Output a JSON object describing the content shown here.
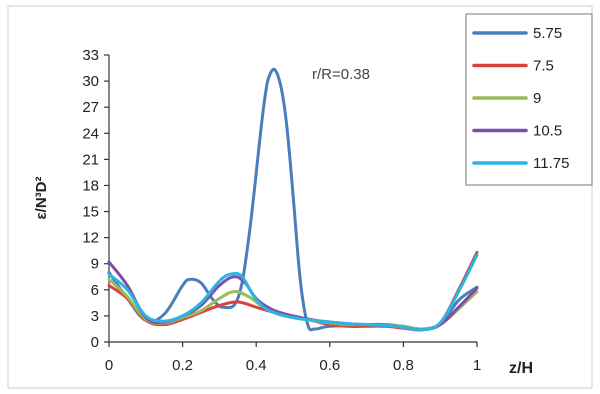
{
  "chart_data": {
    "type": "line",
    "annotation": "r/R=0.38",
    "xlabel": "z/H",
    "ylabel": "ε/N³D²",
    "xlim": [
      0,
      1
    ],
    "ylim": [
      0,
      33
    ],
    "xticks": [
      0,
      0.2,
      0.4,
      0.6,
      0.8,
      1
    ],
    "xtick_labels": [
      "0",
      "0.2",
      "0.4",
      "0.6",
      "0.8",
      "1"
    ],
    "yticks": [
      0,
      3,
      6,
      9,
      12,
      15,
      18,
      21,
      24,
      27,
      30,
      33
    ],
    "ytick_labels": [
      "0",
      "3",
      "6",
      "9",
      "12",
      "15",
      "18",
      "21",
      "24",
      "27",
      "30",
      "33"
    ],
    "grid": false,
    "legend_position": "top-right",
    "series": [
      {
        "name": "5.75",
        "color": "#4a7ebb",
        "x": [
          0,
          0.05,
          0.1,
          0.15,
          0.2,
          0.22,
          0.25,
          0.28,
          0.31,
          0.35,
          0.38,
          0.42,
          0.44,
          0.46,
          0.48,
          0.5,
          0.52,
          0.54,
          0.56,
          0.6,
          0.7,
          0.75,
          0.8,
          0.85,
          0.9,
          0.95,
          1
        ],
        "y": [
          8,
          5,
          2.5,
          3.2,
          6.5,
          7.2,
          6.8,
          5,
          4,
          5,
          12,
          27,
          31,
          30.5,
          26,
          17,
          7,
          2,
          1.5,
          1.8,
          2.0,
          2.0,
          1.8,
          1.5,
          2.0,
          4.8,
          6.3
        ]
      },
      {
        "name": "7.5",
        "color": "#d9423e",
        "x": [
          0,
          0.05,
          0.1,
          0.15,
          0.2,
          0.25,
          0.3,
          0.35,
          0.4,
          0.45,
          0.5,
          0.55,
          0.6,
          0.65,
          0.7,
          0.75,
          0.8,
          0.85,
          0.9,
          0.95,
          1
        ],
        "y": [
          6.5,
          5,
          2.5,
          2,
          2.6,
          3.4,
          4.2,
          4.6,
          4.0,
          3.4,
          3.0,
          2.5,
          2.0,
          1.8,
          1.8,
          1.8,
          1.6,
          1.4,
          2.2,
          6.0,
          10.3
        ]
      },
      {
        "name": "9",
        "color": "#9bbb59",
        "x": [
          0,
          0.05,
          0.1,
          0.15,
          0.2,
          0.25,
          0.3,
          0.34,
          0.38,
          0.42,
          0.46,
          0.5,
          0.55,
          0.6,
          0.65,
          0.7,
          0.75,
          0.8,
          0.85,
          0.9,
          0.95,
          1
        ],
        "y": [
          7.2,
          5.2,
          2.6,
          2.2,
          2.8,
          3.6,
          5.0,
          5.8,
          5.2,
          4.0,
          3.4,
          3.0,
          2.5,
          2.2,
          2.0,
          2.0,
          1.9,
          1.8,
          1.5,
          2.0,
          3.8,
          5.8
        ]
      },
      {
        "name": "10.5",
        "color": "#7f4fa8",
        "x": [
          0,
          0.05,
          0.1,
          0.15,
          0.2,
          0.25,
          0.3,
          0.34,
          0.37,
          0.4,
          0.44,
          0.48,
          0.52,
          0.56,
          0.6,
          0.65,
          0.7,
          0.75,
          0.8,
          0.85,
          0.9,
          0.95,
          1
        ],
        "y": [
          9.2,
          6.5,
          2.8,
          2.3,
          3.0,
          4.2,
          6.5,
          7.5,
          6.8,
          5.0,
          3.8,
          3.2,
          2.8,
          2.5,
          2.3,
          2.1,
          2.0,
          1.9,
          1.7,
          1.4,
          2.0,
          4.0,
          6.2
        ]
      },
      {
        "name": "11.75",
        "color": "#2bb5e3",
        "x": [
          0,
          0.05,
          0.1,
          0.15,
          0.2,
          0.25,
          0.3,
          0.33,
          0.36,
          0.39,
          0.42,
          0.46,
          0.5,
          0.55,
          0.6,
          0.65,
          0.7,
          0.75,
          0.8,
          0.85,
          0.9,
          0.95,
          1
        ],
        "y": [
          7.8,
          6.0,
          3.0,
          2.4,
          3.0,
          4.5,
          7.0,
          7.8,
          7.6,
          5.5,
          4.0,
          3.2,
          2.8,
          2.5,
          2.3,
          2.1,
          2.0,
          1.9,
          1.7,
          1.4,
          2.2,
          5.8,
          10.0
        ]
      }
    ]
  }
}
